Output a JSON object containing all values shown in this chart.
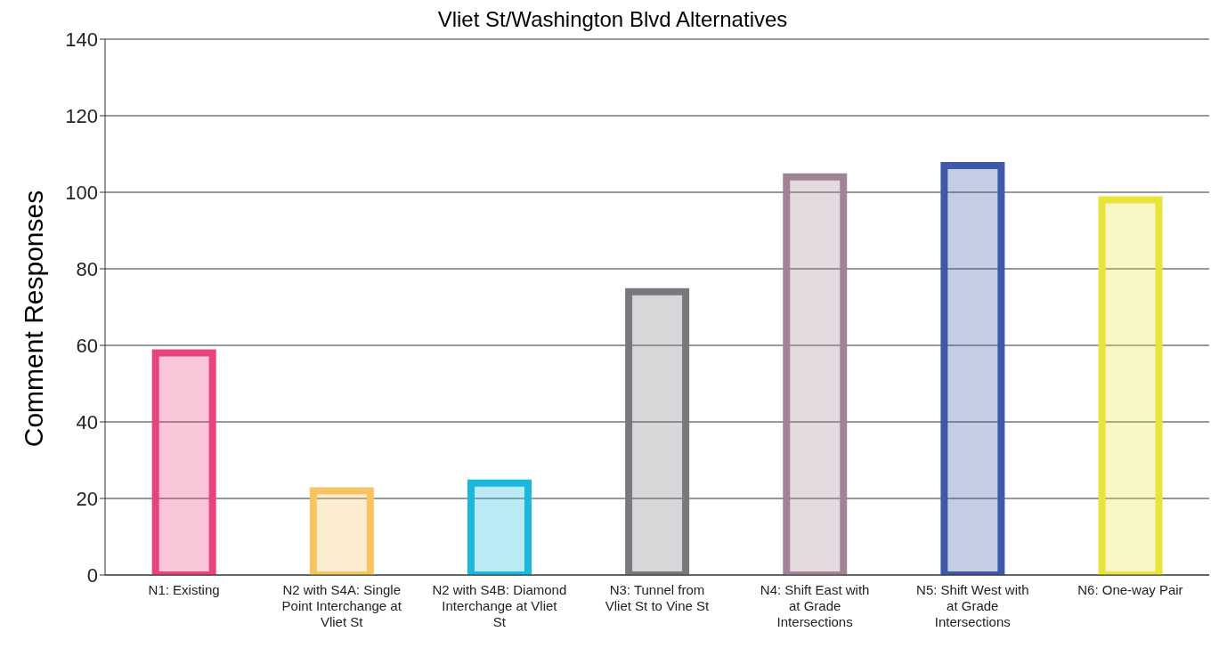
{
  "chart_data": {
    "type": "bar",
    "title": "Vliet St/Washington Blvd Alternatives",
    "ylabel": "Comment Responses",
    "categories": [
      "N1: Existing",
      "N2 with S4A: Single Point Interchange at Vliet St",
      "N2 with S4B: Diamond Interchange at Vliet St",
      "N3: Tunnel from Vliet St to Vine St",
      "N4: Shift East with at Grade Intersections",
      "N5: Shift West with at Grade Intersections",
      "N6: One-way Pair"
    ],
    "values": [
      58,
      22,
      24,
      74,
      104,
      107,
      98
    ],
    "colors": [
      "#e8437f",
      "#f7c462",
      "#1ab8dc",
      "#77797d",
      "#a08394",
      "#3f58a8",
      "#e8e43a"
    ],
    "ylim": [
      0,
      140
    ],
    "yticks": [
      0,
      20,
      40,
      60,
      80,
      100,
      120,
      140
    ],
    "grid": "y"
  }
}
